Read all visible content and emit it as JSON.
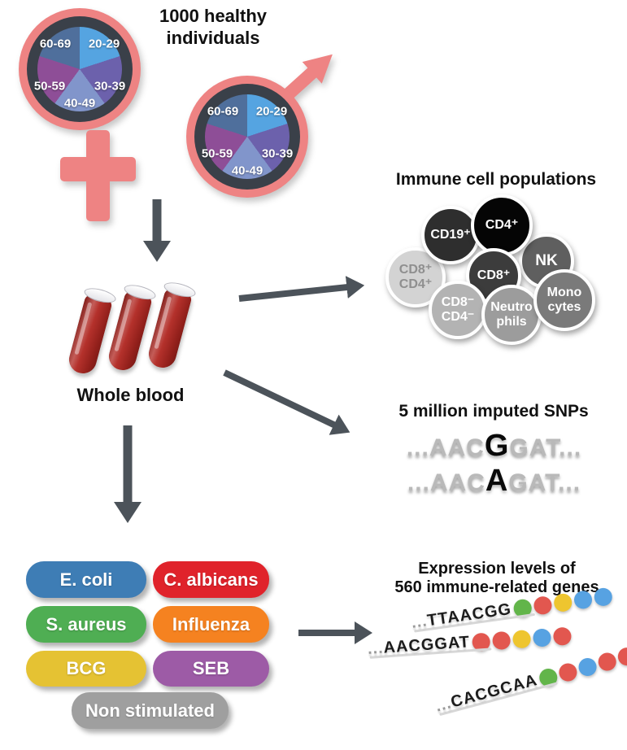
{
  "header": {
    "title": "1000 healthy\nindividuals"
  },
  "demographics": {
    "symbol_color": "#ee8383",
    "ring_border": "#3a4049",
    "age_groups": [
      {
        "label": "20-29",
        "color": "#55a4e1"
      },
      {
        "label": "30-39",
        "color": "#6c61ac"
      },
      {
        "label": "40-49",
        "color": "#8195cb"
      },
      {
        "label": "50-59",
        "color": "#8e4e97"
      },
      {
        "label": "60-69",
        "color": "#4f6f9c"
      }
    ]
  },
  "arrow_color": "#4c535a",
  "whole_blood": {
    "label": "Whole blood",
    "blood_color": "#b02620"
  },
  "immune_cells": {
    "title": "Immune cell populations",
    "cells": [
      {
        "line1": "CD8⁺",
        "line2": "CD4⁺",
        "color": "#d3d3d3",
        "text_color": "#8f8f8f"
      },
      {
        "line1": "NK",
        "line2": "",
        "color": "#5f5f5f",
        "text_color": "#ffffff"
      },
      {
        "line1": "CD19⁺",
        "line2": "",
        "color": "#2e2e2e",
        "text_color": "#ffffff"
      },
      {
        "line1": "CD4⁺",
        "line2": "",
        "color": "#050505",
        "text_color": "#ffffff"
      },
      {
        "line1": "CD8⁺",
        "line2": "",
        "color": "#3c3c3c",
        "text_color": "#ffffff"
      },
      {
        "line1": "CD8⁻",
        "line2": "CD4⁻",
        "color": "#b3b3b3",
        "text_color": "#ffffff"
      },
      {
        "line1": "Neutro",
        "line2": "phils",
        "color": "#9c9c9c",
        "text_color": "#ffffff"
      },
      {
        "line1": "Mono",
        "line2": "cytes",
        "color": "#7a7a7a",
        "text_color": "#ffffff"
      }
    ]
  },
  "snps": {
    "title": "5 million imputed SNPs",
    "rows": [
      {
        "pre": "...AAC",
        "variant": "G",
        "post": "GAT..."
      },
      {
        "pre": "...AAC",
        "variant": "A",
        "post": "GAT..."
      }
    ]
  },
  "stimuli": {
    "items": [
      {
        "label": "E. coli",
        "color": "#3e7db5"
      },
      {
        "label": "C. albicans",
        "color": "#e0232b"
      },
      {
        "label": "S. aureus",
        "color": "#4fae53"
      },
      {
        "label": "Influenza",
        "color": "#f58220"
      },
      {
        "label": "BCG",
        "color": "#e5c233"
      },
      {
        "label": "SEB",
        "color": "#9d5ba6"
      },
      {
        "label": "Non stimulated",
        "color": "#9f9f9f"
      }
    ]
  },
  "expression": {
    "title": "Expression levels of\n560 immune-related genes",
    "dot_colors": {
      "green": "#62b54a",
      "red": "#e2574f",
      "yellow": "#eec52f",
      "blue": "#57a2e2"
    },
    "sequences": [
      {
        "prefix": "...",
        "text": "TTAACGG",
        "dots": [
          "green",
          "red",
          "yellow",
          "blue",
          "blue"
        ]
      },
      {
        "prefix": "...",
        "text": "AACGGAT",
        "dots": [
          "red",
          "red",
          "yellow",
          "blue",
          "red"
        ]
      },
      {
        "prefix": "...",
        "text": "CACGCAA",
        "dots": [
          "green",
          "red",
          "blue",
          "red",
          "red"
        ]
      }
    ]
  }
}
